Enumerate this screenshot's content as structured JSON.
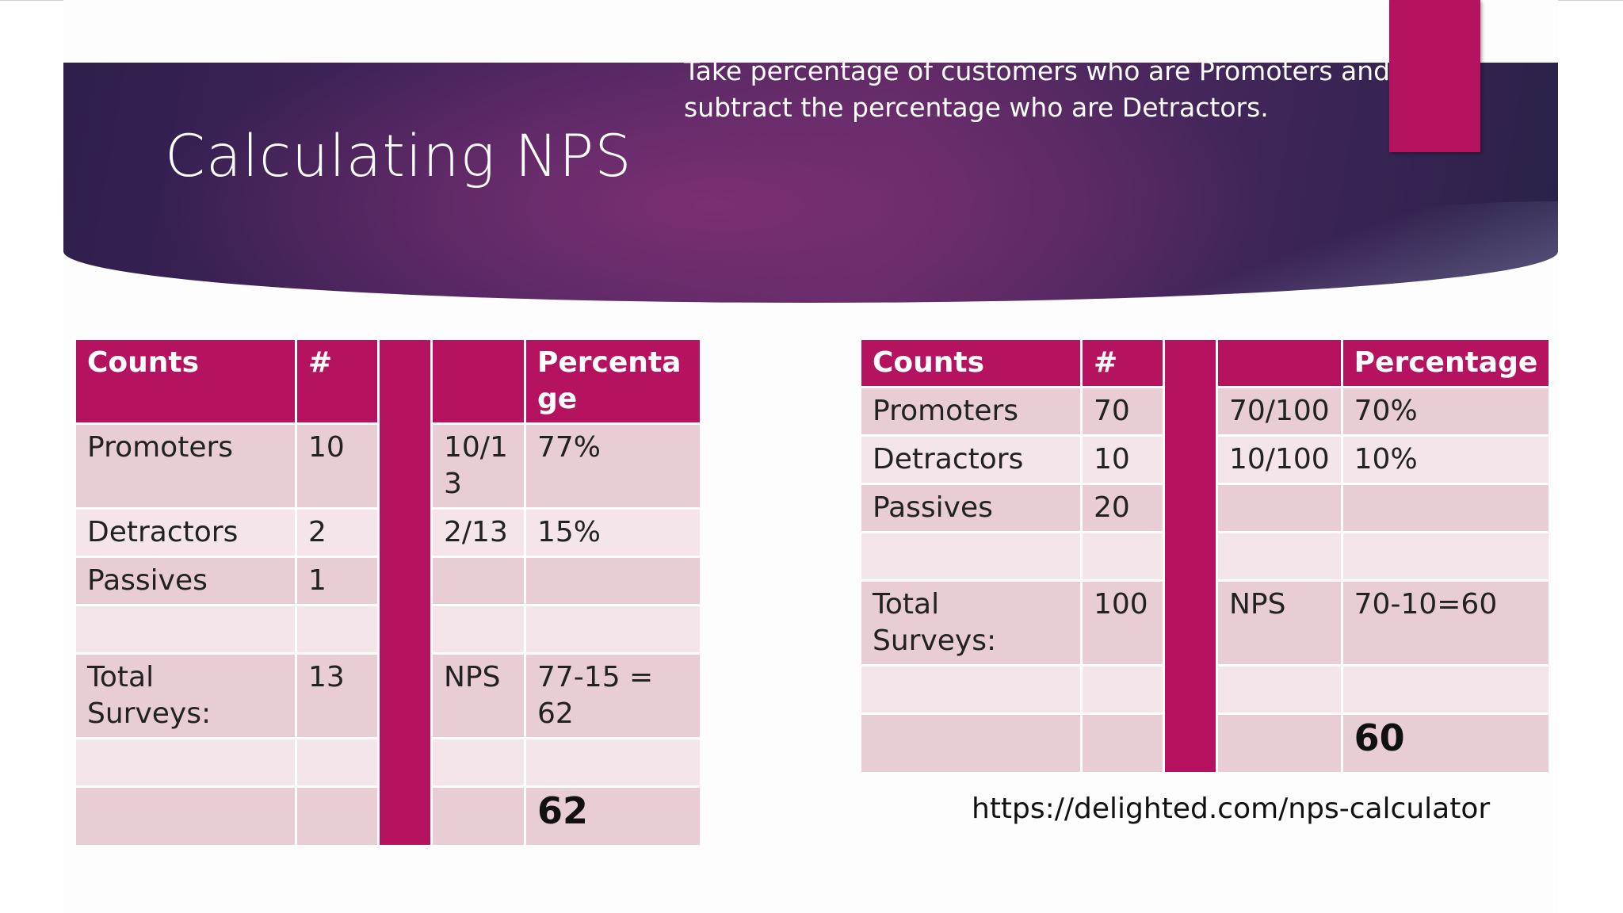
{
  "slide": {
    "title": "Calculating NPS",
    "subtitle": "Take percentage of customers who are Promoters and subtract the percentage who are Detractors.",
    "link": "https://delighted.com/nps-calculator"
  },
  "left_table": {
    "headers": {
      "counts": "Counts",
      "num": "#",
      "calc": "",
      "pct": "Percentage"
    },
    "rows": [
      {
        "label": "Promoters",
        "num": "10",
        "calc": "10/13",
        "pct": "77%"
      },
      {
        "label": "Detractors",
        "num": "2",
        "calc": "2/13",
        "pct": "15%"
      },
      {
        "label": "Passives",
        "num": "1",
        "calc": "",
        "pct": ""
      },
      {
        "label": "",
        "num": "",
        "calc": "",
        "pct": ""
      },
      {
        "label": "Total Surveys:",
        "num": "13",
        "calc": "NPS",
        "pct": "77-15 = 62"
      },
      {
        "label": "",
        "num": "",
        "calc": "",
        "pct": ""
      },
      {
        "label": "",
        "num": "",
        "calc": "",
        "pct": "62"
      }
    ]
  },
  "right_table": {
    "headers": {
      "counts": "Counts",
      "num": "#",
      "calc": "",
      "pct": "Percentage"
    },
    "rows": [
      {
        "label": "Promoters",
        "num": "70",
        "calc": "70/100",
        "pct": "70%"
      },
      {
        "label": "Detractors",
        "num": "10",
        "calc": "10/100",
        "pct": "10%"
      },
      {
        "label": "Passives",
        "num": "20",
        "calc": "",
        "pct": ""
      },
      {
        "label": "",
        "num": "",
        "calc": "",
        "pct": ""
      },
      {
        "label": "Total Surveys:",
        "num": "100",
        "calc": "NPS",
        "pct": "70-10=60"
      },
      {
        "label": "",
        "num": "",
        "calc": "",
        "pct": ""
      },
      {
        "label": "",
        "num": "",
        "calc": "",
        "pct": "60"
      }
    ]
  },
  "colors": {
    "accent": "#b5135f",
    "row_dark": "#e8cdd5",
    "row_light": "#f3e5e9",
    "header_dark": "#2e1f4c",
    "header_mid": "#5e2a66"
  }
}
